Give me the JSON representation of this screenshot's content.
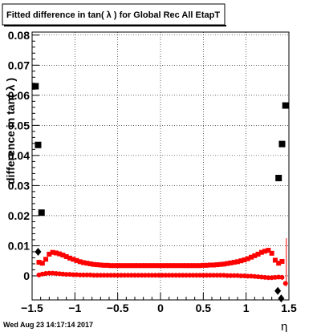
{
  "title": "Fitted difference in tan( λ ) for Global Rec All EtapT",
  "footer": "Wed Aug 23 14:17:14 2017",
  "chart_data": {
    "type": "scatter",
    "title": "Fitted difference in tan( λ ) for Global Rec All EtapT",
    "xlabel": "η",
    "ylabel": "difference in tan( λ )",
    "xlim": [
      -1.5,
      1.5
    ],
    "ylim": [
      -0.008,
      0.081
    ],
    "grid": true,
    "x_ticks": [
      -1.5,
      -1,
      -0.5,
      0,
      0.5,
      1,
      1.5
    ],
    "x_tick_labels": [
      "−1.5",
      "−1",
      "−0.5",
      "0",
      "0.5",
      "1",
      "1.5"
    ],
    "y_ticks": [
      0,
      0.01,
      0.02,
      0.03,
      0.04,
      0.05,
      0.06,
      0.07,
      0.08
    ],
    "y_tick_labels": [
      "0",
      "0.01",
      "0.02",
      "0.03",
      "0.04",
      "0.05",
      "0.06",
      "0.07",
      "0.08"
    ],
    "series": [
      {
        "marker": "square",
        "color": "#000000",
        "points": [
          [
            -1.46,
            0.063
          ],
          [
            -1.43,
            0.0435
          ],
          [
            -1.39,
            0.021
          ],
          [
            1.38,
            0.0325
          ],
          [
            1.42,
            0.0438
          ],
          [
            1.46,
            0.0566
          ]
        ]
      },
      {
        "marker": "diamond",
        "color": "#000000",
        "points": [
          [
            -1.43,
            0.008
          ],
          [
            1.37,
            -0.005
          ],
          [
            1.41,
            -0.0075
          ]
        ]
      },
      {
        "marker": "square",
        "color": "#ff0000",
        "points": [
          [
            -1.42,
            0.0045
          ],
          [
            -1.38,
            0.0042
          ],
          [
            -1.34,
            0.0055
          ],
          [
            -1.3,
            0.0072
          ],
          [
            -1.26,
            0.0078
          ],
          [
            -1.22,
            0.0076
          ],
          [
            -1.18,
            0.0073
          ],
          [
            -1.14,
            0.0069
          ],
          [
            -1.1,
            0.0064
          ],
          [
            -1.06,
            0.0059
          ],
          [
            -1.02,
            0.0055
          ],
          [
            -0.98,
            0.0051
          ],
          [
            -0.94,
            0.0047
          ],
          [
            -0.9,
            0.0044
          ],
          [
            -0.86,
            0.0042
          ],
          [
            -0.82,
            0.004
          ],
          [
            -0.78,
            0.0038
          ],
          [
            -0.74,
            0.0037
          ],
          [
            -0.7,
            0.0036
          ],
          [
            -0.66,
            0.0035
          ],
          [
            -0.62,
            0.0035
          ],
          [
            -0.58,
            0.0034
          ],
          [
            -0.54,
            0.0034
          ],
          [
            -0.5,
            0.0034
          ],
          [
            -0.46,
            0.0034
          ],
          [
            -0.42,
            0.0034
          ],
          [
            -0.38,
            0.0034
          ],
          [
            -0.34,
            0.0034
          ],
          [
            -0.3,
            0.0034
          ],
          [
            -0.26,
            0.0034
          ],
          [
            -0.22,
            0.0034
          ],
          [
            -0.18,
            0.0034
          ],
          [
            -0.14,
            0.0034
          ],
          [
            -0.1,
            0.0034
          ],
          [
            -0.06,
            0.0034
          ],
          [
            -0.02,
            0.0034
          ],
          [
            0.02,
            0.0034
          ],
          [
            0.06,
            0.0034
          ],
          [
            0.1,
            0.0034
          ],
          [
            0.14,
            0.0034
          ],
          [
            0.18,
            0.0034
          ],
          [
            0.22,
            0.0034
          ],
          [
            0.26,
            0.0034
          ],
          [
            0.3,
            0.0034
          ],
          [
            0.34,
            0.0034
          ],
          [
            0.38,
            0.0034
          ],
          [
            0.42,
            0.0034
          ],
          [
            0.46,
            0.0034
          ],
          [
            0.5,
            0.0035
          ],
          [
            0.54,
            0.0035
          ],
          [
            0.58,
            0.0036
          ],
          [
            0.62,
            0.0036
          ],
          [
            0.66,
            0.0037
          ],
          [
            0.7,
            0.0038
          ],
          [
            0.74,
            0.0039
          ],
          [
            0.78,
            0.0041
          ],
          [
            0.82,
            0.0043
          ],
          [
            0.86,
            0.0045
          ],
          [
            0.9,
            0.0047
          ],
          [
            0.94,
            0.005
          ],
          [
            0.98,
            0.0053
          ],
          [
            1.02,
            0.0057
          ],
          [
            1.06,
            0.0062
          ],
          [
            1.1,
            0.0067
          ],
          [
            1.14,
            0.0072
          ],
          [
            1.18,
            0.0078
          ],
          [
            1.22,
            0.0082
          ],
          [
            1.26,
            0.0085
          ],
          [
            1.3,
            0.0075
          ],
          [
            1.34,
            0.0052
          ],
          [
            1.38,
            0.0042
          ],
          [
            1.42,
            0.0048
          ]
        ]
      },
      {
        "marker": "circle",
        "color": "#ff0000",
        "points": [
          [
            -1.42,
            0.0003
          ],
          [
            -1.38,
            0.0006
          ],
          [
            -1.34,
            0.0008
          ],
          [
            -1.3,
            0.0009
          ],
          [
            -1.26,
            0.0009
          ],
          [
            -1.22,
            0.0008
          ],
          [
            -1.18,
            0.0007
          ],
          [
            -1.14,
            0.0006
          ],
          [
            -1.1,
            0.0005
          ],
          [
            -1.06,
            0.0005
          ],
          [
            -1.02,
            0.0004
          ],
          [
            -0.98,
            0.0004
          ],
          [
            -0.94,
            0.0003
          ],
          [
            -0.9,
            0.0003
          ],
          [
            -0.86,
            0.0003
          ],
          [
            -0.82,
            0.0003
          ],
          [
            -0.78,
            0.0002
          ],
          [
            -0.74,
            0.0002
          ],
          [
            -0.7,
            0.0002
          ],
          [
            -0.66,
            0.0002
          ],
          [
            -0.62,
            0.0002
          ],
          [
            -0.58,
            0.0002
          ],
          [
            -0.54,
            0.0002
          ],
          [
            -0.5,
            0.0002
          ],
          [
            -0.46,
            0.0002
          ],
          [
            -0.42,
            0.0002
          ],
          [
            -0.38,
            0.0002
          ],
          [
            -0.34,
            0.0002
          ],
          [
            -0.3,
            0.0002
          ],
          [
            -0.26,
            0.0002
          ],
          [
            -0.22,
            0.0002
          ],
          [
            -0.18,
            0.0002
          ],
          [
            -0.14,
            0.0002
          ],
          [
            -0.1,
            0.0002
          ],
          [
            -0.06,
            0.0002
          ],
          [
            -0.02,
            0.0002
          ],
          [
            0.02,
            0.0002
          ],
          [
            0.06,
            0.0002
          ],
          [
            0.1,
            0.0002
          ],
          [
            0.14,
            0.0002
          ],
          [
            0.18,
            0.0002
          ],
          [
            0.22,
            0.0002
          ],
          [
            0.26,
            0.0002
          ],
          [
            0.3,
            0.0002
          ],
          [
            0.34,
            0.0002
          ],
          [
            0.38,
            0.0002
          ],
          [
            0.42,
            0.0002
          ],
          [
            0.46,
            0.0002
          ],
          [
            0.5,
            0.0002
          ],
          [
            0.54,
            0.0002
          ],
          [
            0.58,
            0.0002
          ],
          [
            0.62,
            0.0002
          ],
          [
            0.66,
            0.0002
          ],
          [
            0.7,
            0.0002
          ],
          [
            0.74,
            0.0002
          ],
          [
            0.78,
            0.0001
          ],
          [
            0.82,
            0.0001
          ],
          [
            0.86,
            0.0001
          ],
          [
            0.9,
            0.0001
          ],
          [
            0.94,
            0.0
          ],
          [
            0.98,
            0.0
          ],
          [
            1.02,
            -0.0001
          ],
          [
            1.06,
            -0.0001
          ],
          [
            1.1,
            -0.0002
          ],
          [
            1.14,
            -0.0003
          ],
          [
            1.18,
            -0.0004
          ],
          [
            1.22,
            -0.0005
          ],
          [
            1.26,
            -0.0006
          ],
          [
            1.3,
            -0.0006
          ],
          [
            1.34,
            -0.0005
          ],
          [
            1.38,
            -0.0004
          ],
          [
            1.42,
            -0.0005
          ],
          [
            1.46,
            -0.0025
          ]
        ]
      }
    ]
  }
}
